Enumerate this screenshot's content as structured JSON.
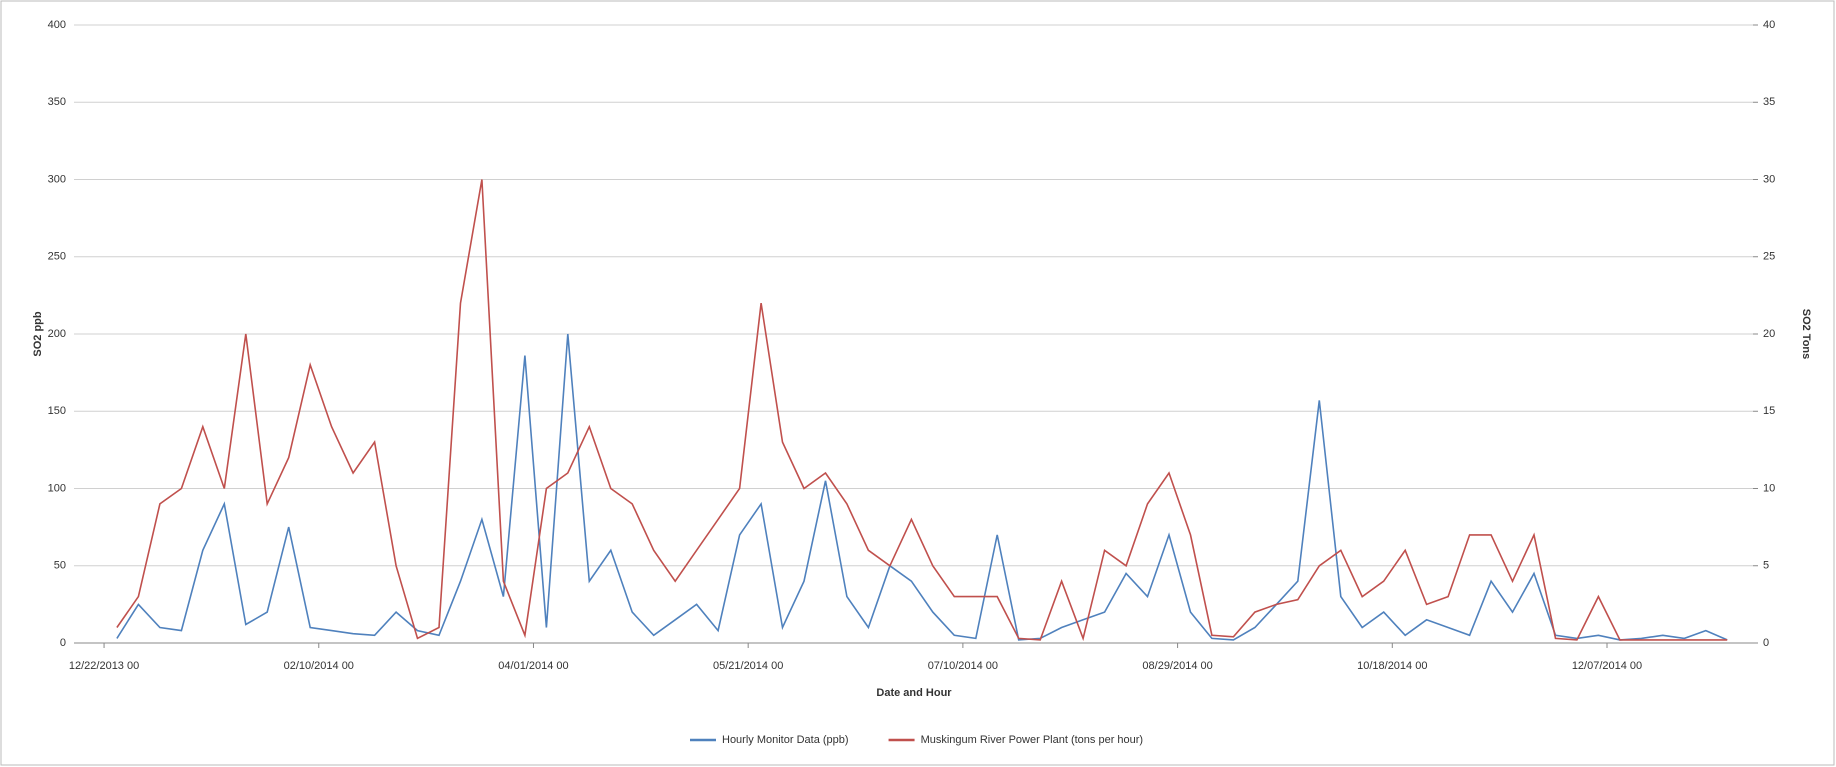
{
  "chart_data": {
    "type": "line",
    "xlabel": "Date and Hour",
    "ylabel": "SO2 ppb",
    "y2label": "SO2 Tons",
    "x": [
      "12/25/2013 00",
      "12/30/2013 00",
      "01/04/2014 00",
      "01/09/2014 00",
      "01/14/2014 00",
      "01/19/2014 00",
      "01/24/2014 00",
      "01/29/2014 00",
      "02/03/2014 00",
      "02/08/2014 00",
      "02/13/2014 00",
      "02/18/2014 00",
      "02/23/2014 00",
      "02/28/2014 00",
      "03/05/2014 00",
      "03/10/2014 00",
      "03/15/2014 00",
      "03/20/2014 00",
      "03/25/2014 00",
      "03/30/2014 00",
      "04/04/2014 00",
      "04/09/2014 00",
      "04/14/2014 00",
      "04/19/2014 00",
      "04/24/2014 00",
      "04/29/2014 00",
      "05/04/2014 00",
      "05/09/2014 00",
      "05/14/2014 00",
      "05/19/2014 00",
      "05/24/2014 00",
      "05/29/2014 00",
      "06/03/2014 00",
      "06/08/2014 00",
      "06/13/2014 00",
      "06/18/2014 00",
      "06/23/2014 00",
      "06/28/2014 00",
      "07/03/2014 00",
      "07/08/2014 00",
      "07/13/2014 00",
      "07/18/2014 00",
      "07/23/2014 00",
      "07/28/2014 00",
      "08/02/2014 00",
      "08/07/2014 00",
      "08/12/2014 00",
      "08/17/2014 00",
      "08/22/2014 00",
      "08/27/2014 00",
      "09/01/2014 00",
      "09/06/2014 00",
      "09/11/2014 00",
      "09/16/2014 00",
      "09/21/2014 00",
      "09/26/2014 00",
      "10/01/2014 00",
      "10/06/2014 00",
      "10/11/2014 00",
      "10/16/2014 00",
      "10/21/2014 00",
      "10/26/2014 00",
      "10/31/2014 00",
      "11/05/2014 00",
      "11/10/2014 00",
      "11/15/2014 00",
      "11/20/2014 00",
      "11/25/2014 00",
      "11/30/2014 00",
      "12/05/2014 00",
      "12/10/2014 00",
      "12/15/2014 00",
      "12/20/2014 00",
      "12/25/2014 00",
      "12/30/2014 00",
      "01/04/2015 00"
    ],
    "series": [
      {
        "name": "Hourly Monitor Data (ppb)",
        "color": "#4f81bd",
        "axis": "y",
        "values": [
          3,
          25,
          10,
          8,
          60,
          90,
          12,
          20,
          75,
          10,
          8,
          6,
          5,
          20,
          8,
          5,
          40,
          80,
          30,
          186,
          10,
          200,
          40,
          60,
          20,
          5,
          15,
          25,
          8,
          70,
          90,
          10,
          40,
          105,
          30,
          10,
          50,
          40,
          20,
          5,
          3,
          70,
          2,
          3,
          10,
          15,
          20,
          45,
          30,
          70,
          20,
          3,
          2,
          10,
          25,
          40,
          157,
          30,
          10,
          20,
          5,
          15,
          10,
          5,
          40,
          20,
          45,
          5,
          3,
          5,
          2,
          3,
          5,
          3,
          8,
          2
        ]
      },
      {
        "name": "Muskingum River Power Plant (tons per hour)",
        "color": "#c0504d",
        "axis": "y2",
        "values": [
          1,
          3,
          9,
          10,
          14,
          10,
          20,
          9,
          12,
          18,
          14,
          11,
          13,
          5,
          0.3,
          1,
          22,
          30,
          4,
          0.5,
          10,
          11,
          14,
          10,
          9,
          6,
          4,
          6,
          8,
          10,
          22,
          13,
          10,
          11,
          9,
          6,
          5,
          8,
          5,
          3,
          3,
          3,
          0.3,
          0.2,
          4,
          0.3,
          6,
          5,
          9,
          11,
          7,
          0.5,
          0.4,
          2,
          2.5,
          2.8,
          5,
          6,
          3,
          4,
          6,
          2.5,
          3,
          7,
          7,
          4,
          7,
          0.3,
          0.2,
          3,
          0.2,
          0.2,
          0.2,
          0.2,
          0.2,
          0.2
        ]
      }
    ],
    "xlim": [
      "12/15/2013 00",
      "01/10/2015 00"
    ],
    "xticks": [
      "12/22/2013 00",
      "02/10/2014 00",
      "04/01/2014 00",
      "05/21/2014 00",
      "07/10/2014 00",
      "08/29/2014 00",
      "10/18/2014 00",
      "12/07/2014 00"
    ],
    "ylim": [
      0,
      400
    ],
    "yticks": [
      0,
      50,
      100,
      150,
      200,
      250,
      300,
      350,
      400
    ],
    "y2lim": [
      0,
      40
    ],
    "y2ticks": [
      0,
      5,
      10,
      15,
      20,
      25,
      30,
      35,
      40
    ],
    "grid": true,
    "legend": "bottom"
  }
}
